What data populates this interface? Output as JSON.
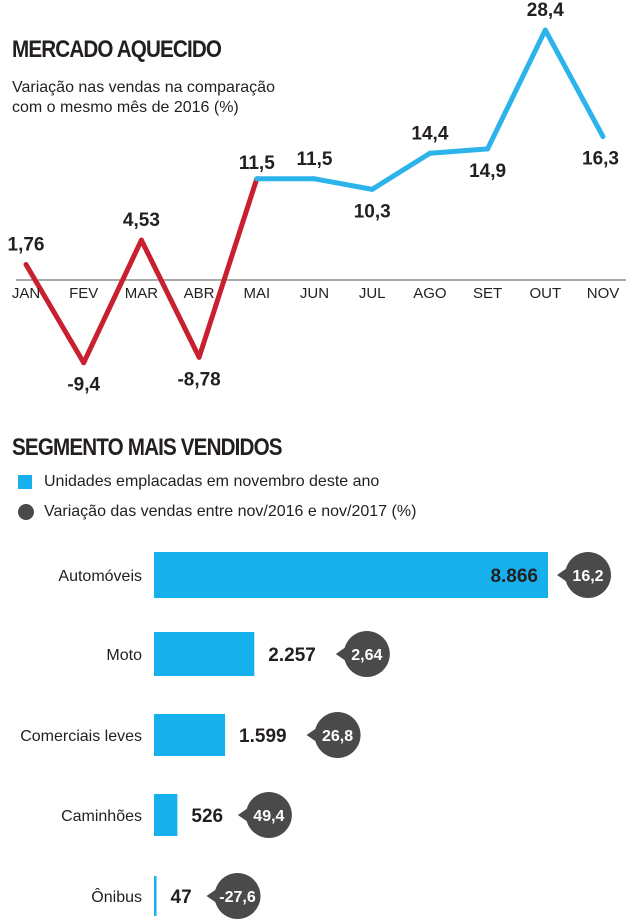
{
  "colors": {
    "line_positive": "#2bb3ea",
    "line_negative": "#c8202f",
    "bar": "#16b1ec",
    "badge": "#4a4a4a",
    "text": "#231f20"
  },
  "line_section": {
    "title": "MERCADO AQUECIDO",
    "subtitle_line1": "Variação nas vendas na comparação",
    "subtitle_line2": "com o mesmo mês de 2016 (%)"
  },
  "bar_section": {
    "title": "SEGMENTO MAIS VENDIDOS",
    "legend_bar": "Unidades emplacadas em novembro deste ano",
    "legend_dot": "Variação das vendas entre nov/2016 e nov/2017 (%)"
  },
  "chart_data": [
    {
      "type": "line",
      "categories": [
        "JAN",
        "FEV",
        "MAR",
        "ABR",
        "MAI",
        "JUN",
        "JUL",
        "AGO",
        "SET",
        "OUT",
        "NOV"
      ],
      "values": [
        1.76,
        -9.4,
        4.53,
        -8.78,
        11.5,
        11.5,
        10.3,
        14.4,
        14.9,
        28.4,
        16.3
      ],
      "labels": [
        "1,76",
        "-9,4",
        "4,53",
        "-8,78",
        "11,5",
        "11,5",
        "10,3",
        "14,4",
        "14,9",
        "28,4",
        "16,3"
      ],
      "title": "MERCADO AQUECIDO",
      "grid": false
    },
    {
      "type": "bar",
      "orientation": "horizontal",
      "categories": [
        "Automóveis",
        "Moto",
        "Comerciais leves",
        "Caminhões",
        "Ônibus"
      ],
      "values": [
        8866,
        2257,
        1599,
        526,
        47
      ],
      "value_labels": [
        "8.866",
        "2.257",
        "1.599",
        "526",
        "47"
      ],
      "variation": [
        16.2,
        2.64,
        26.8,
        49.4,
        -27.6
      ],
      "variation_labels": [
        "16,2",
        "2,64",
        "26,8",
        "49,4",
        "-27,6"
      ],
      "title": "SEGMENTO MAIS VENDIDOS",
      "series": [
        {
          "name": "Unidades emplacadas em novembro deste ano"
        },
        {
          "name": "Variação das vendas entre nov/2016 e nov/2017 (%)"
        }
      ]
    }
  ]
}
